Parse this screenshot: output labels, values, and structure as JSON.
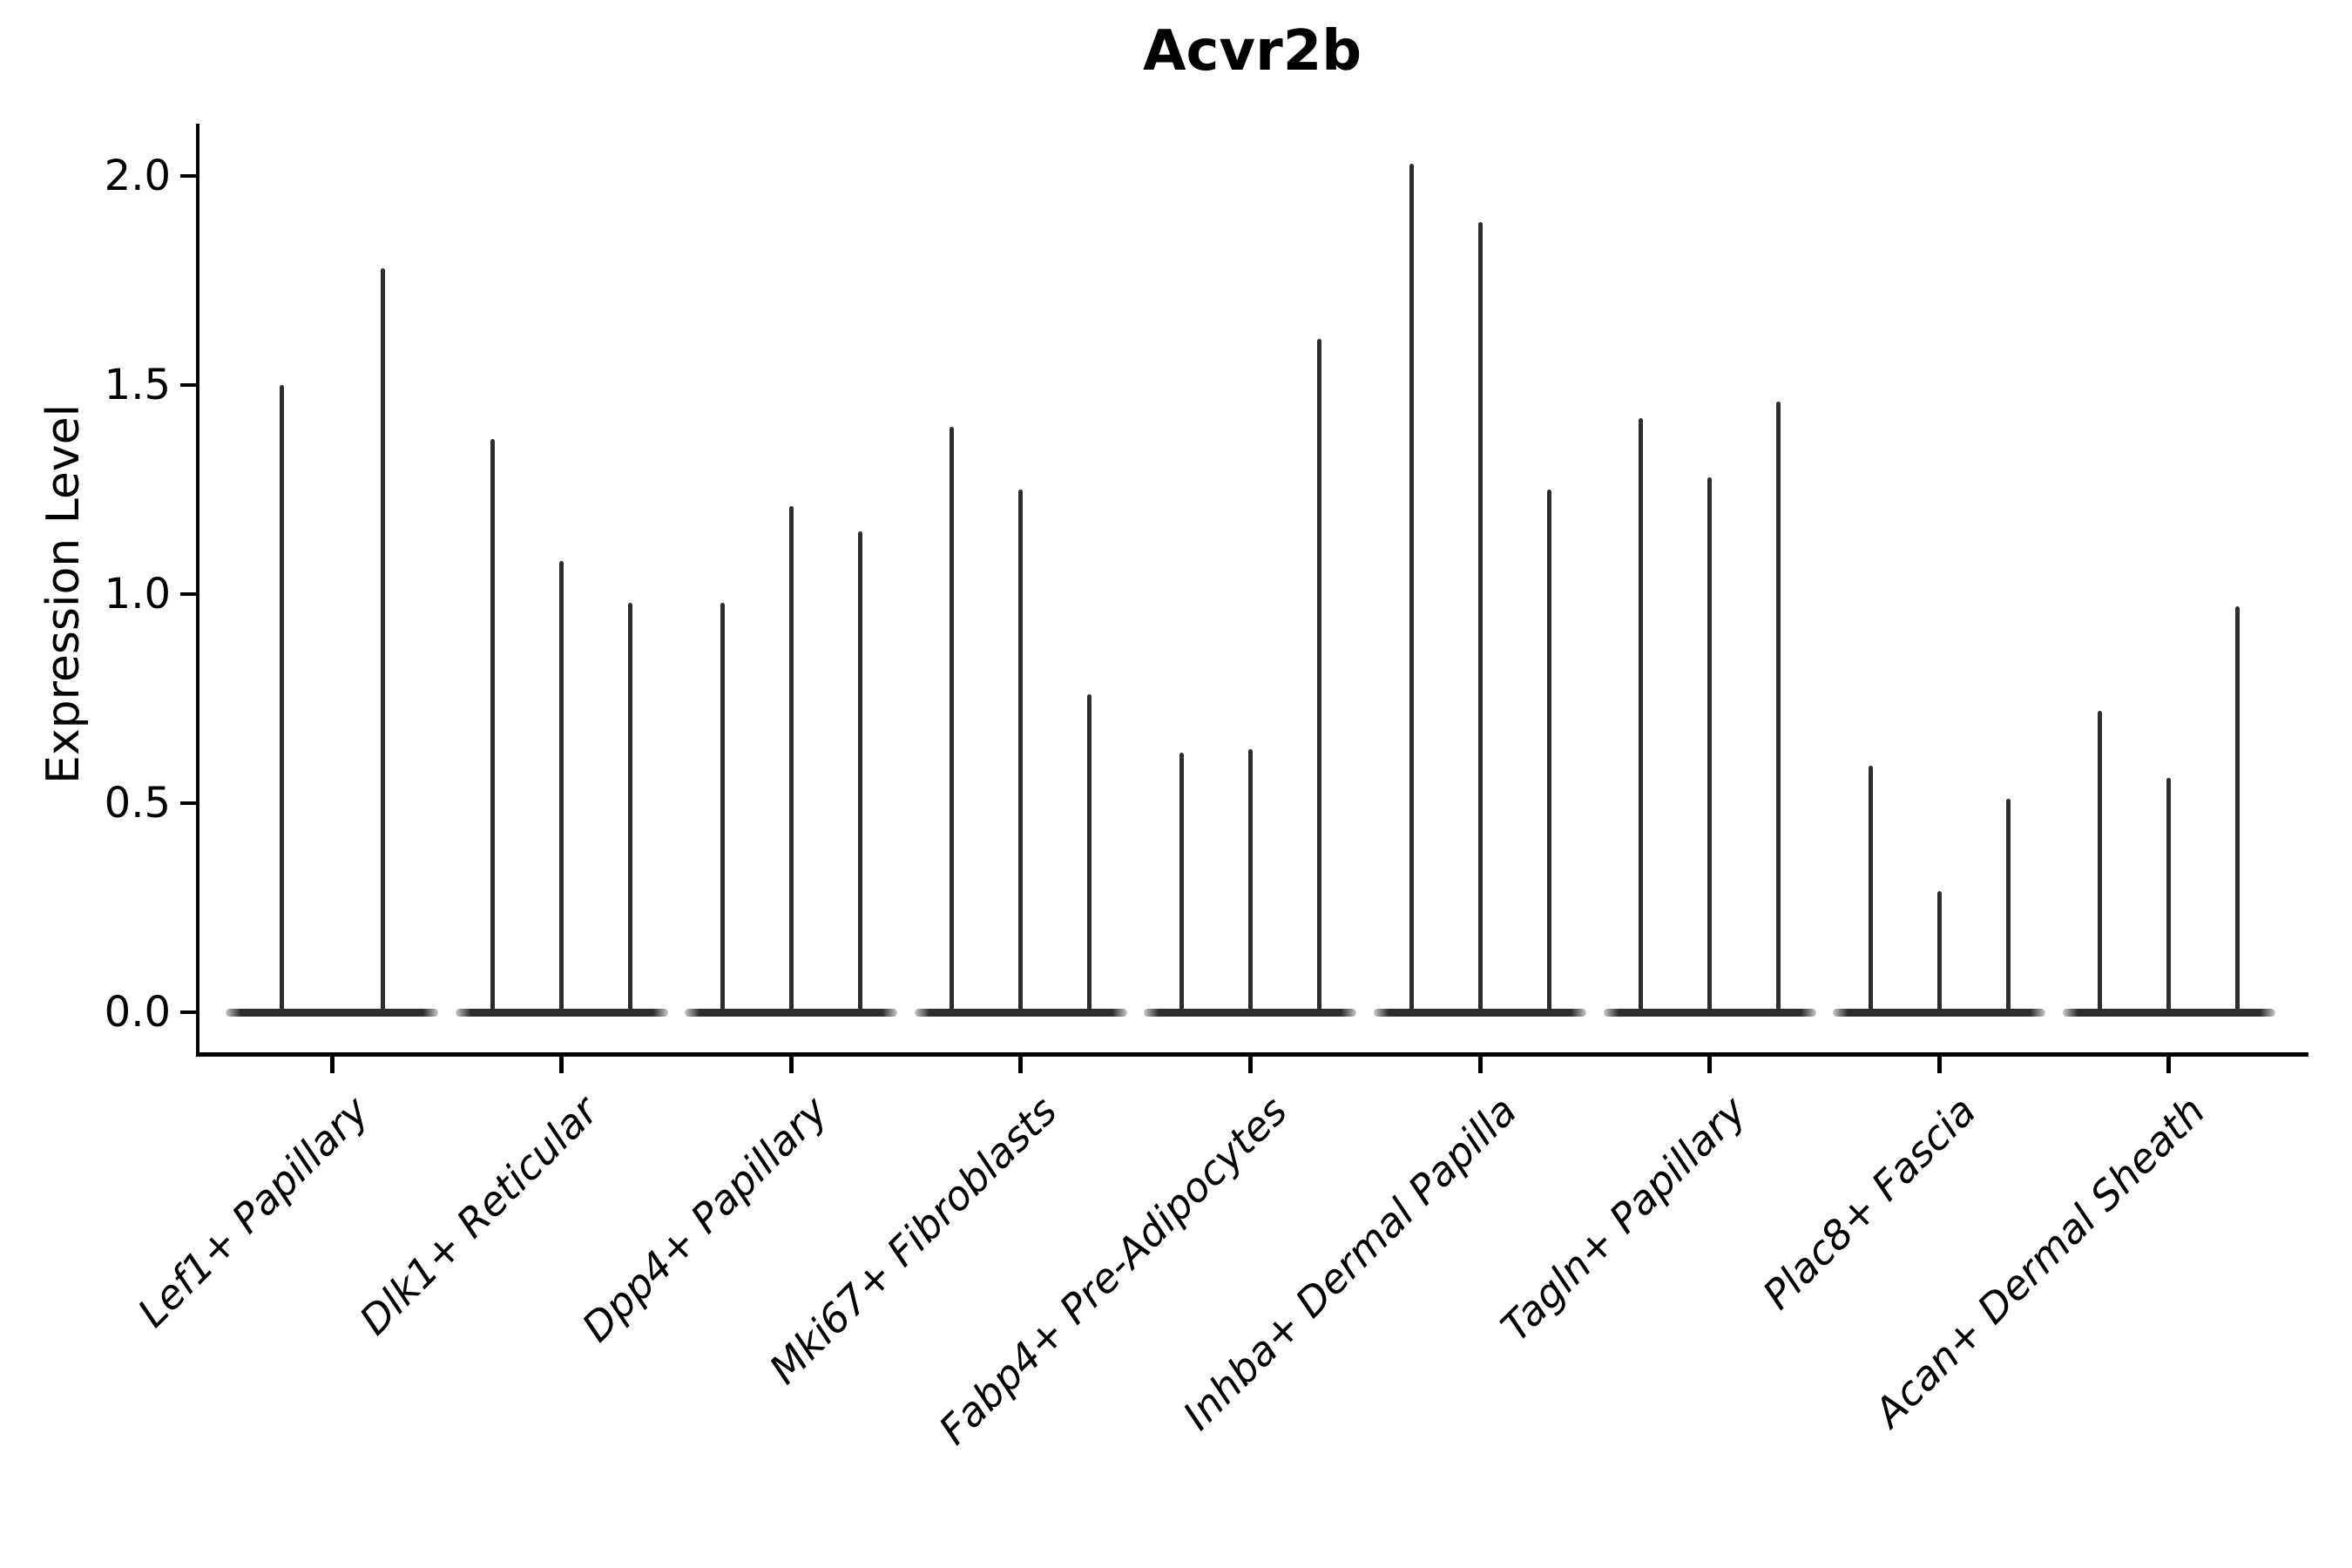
{
  "title": "Acvr2b",
  "y_axis": {
    "label": "Expression Level",
    "ticks": [
      {
        "label": "2.0",
        "value": 2.0
      },
      {
        "label": "1.5",
        "value": 1.5
      },
      {
        "label": "1.0",
        "value": 1.0
      },
      {
        "label": "0.5",
        "value": 0.5
      },
      {
        "label": "0.0",
        "value": 0.0
      }
    ]
  },
  "chart_data": {
    "type": "violin",
    "title": "Acvr2b",
    "xlabel": "",
    "ylabel": "Expression Level",
    "ylim": [
      0,
      2.1
    ],
    "grid": false,
    "legend": "none",
    "style_note": "Seurat-style VlnPlot: per category 2-3 ultra-narrow violins; density mass sits at 0 (flat tapered pill on baseline) with a thin vertical tail rising to each violin's maximum expression value.",
    "categories": [
      "Lef1+ Papillary",
      "Dlk1+ Reticular",
      "Dpp4+ Papillary",
      "Mki67+ Fibroblasts",
      "Fabp4+ Pre-Adipocytes",
      "Inhba+ Dermal Papilla",
      "Tagln+ Papillary",
      "Plac8+ Fascia",
      "Acan+ Dermal Sheath"
    ],
    "series": [
      {
        "category": "Lef1+ Papillary",
        "violin_max_values": [
          1.5,
          1.78
        ]
      },
      {
        "category": "Dlk1+ Reticular",
        "violin_max_values": [
          1.37,
          1.08,
          0.98
        ]
      },
      {
        "category": "Dpp4+ Papillary",
        "violin_max_values": [
          0.98,
          1.21,
          1.15
        ]
      },
      {
        "category": "Mki67+ Fibroblasts",
        "violin_max_values": [
          1.4,
          1.25,
          0.76
        ]
      },
      {
        "category": "Fabp4+ Pre-Adipocytes",
        "violin_max_values": [
          0.62,
          0.63,
          1.61
        ]
      },
      {
        "category": "Inhba+ Dermal Papilla",
        "violin_max_values": [
          2.03,
          1.89,
          1.25
        ]
      },
      {
        "category": "Tagln+ Papillary",
        "violin_max_values": [
          1.42,
          1.28,
          1.46
        ]
      },
      {
        "category": "Plac8+ Fascia",
        "violin_max_values": [
          0.59,
          0.29,
          0.51
        ]
      },
      {
        "category": "Acan+ Dermal Sheath",
        "violin_max_values": [
          0.72,
          0.56,
          0.97
        ]
      }
    ]
  },
  "colors": {
    "violin": "#2e2e2e",
    "axis": "#000000",
    "text": "#000000",
    "background": "#ffffff"
  }
}
